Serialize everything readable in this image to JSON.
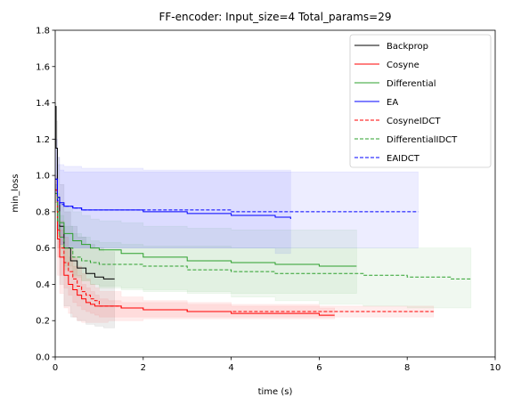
{
  "chart_data": {
    "type": "line",
    "title": "FF-encoder: Input_size=4 Total_params=29",
    "xlabel": "time (s)",
    "ylabel": "min_loss",
    "xlim": [
      0,
      10
    ],
    "ylim": [
      0,
      1.8
    ],
    "xticks": [
      "0",
      "2",
      "4",
      "6",
      "8",
      "10"
    ],
    "yticks": [
      "0.0",
      "0.2",
      "0.4",
      "0.6",
      "0.8",
      "1.0",
      "1.2",
      "1.4",
      "1.6",
      "1.8"
    ],
    "legend_position": "top-right",
    "grid": false,
    "series": [
      {
        "name": "Backprop",
        "color": "#000000",
        "dashed": false,
        "x": [
          0,
          0.02,
          0.05,
          0.1,
          0.2,
          0.35,
          0.5,
          0.7,
          0.9,
          1.1,
          1.35
        ],
        "y": [
          1.38,
          1.15,
          0.88,
          0.72,
          0.6,
          0.53,
          0.49,
          0.46,
          0.44,
          0.43,
          0.43
        ],
        "band_lower": [
          1.3,
          0.9,
          0.6,
          0.4,
          0.28,
          0.22,
          0.2,
          0.18,
          0.17,
          0.16,
          0.16
        ],
        "band_upper": [
          1.4,
          1.3,
          1.1,
          0.95,
          0.8,
          0.72,
          0.66,
          0.62,
          0.6,
          0.58,
          0.58
        ]
      },
      {
        "name": "Cosyne",
        "color": "#ff0000",
        "dashed": false,
        "x": [
          0,
          0.05,
          0.1,
          0.2,
          0.3,
          0.4,
          0.5,
          0.6,
          0.7,
          0.8,
          0.9,
          1.0,
          1.2,
          1.5,
          2,
          3,
          4,
          5,
          6,
          6.35
        ],
        "y": [
          0.92,
          0.65,
          0.55,
          0.45,
          0.4,
          0.37,
          0.34,
          0.32,
          0.3,
          0.29,
          0.28,
          0.28,
          0.28,
          0.27,
          0.26,
          0.25,
          0.24,
          0.24,
          0.23,
          0.23
        ],
        "band_lower": [
          0.8,
          0.45,
          0.35,
          0.27,
          0.24,
          0.22,
          0.2,
          0.19,
          0.19,
          0.19,
          0.19,
          0.19,
          0.2,
          0.2,
          0.21,
          0.21,
          0.21,
          0.21,
          0.21,
          0.21
        ],
        "band_upper": [
          1.0,
          0.85,
          0.7,
          0.6,
          0.55,
          0.5,
          0.45,
          0.4,
          0.38,
          0.36,
          0.34,
          0.32,
          0.31,
          0.3,
          0.3,
          0.29,
          0.28,
          0.28,
          0.27,
          0.27
        ]
      },
      {
        "name": "Differential",
        "color": "#2ca02c",
        "dashed": false,
        "x": [
          0,
          0.05,
          0.1,
          0.2,
          0.4,
          0.6,
          0.8,
          1.0,
          1.5,
          2,
          3,
          4,
          5,
          6,
          6.85
        ],
        "y": [
          0.9,
          0.8,
          0.74,
          0.68,
          0.64,
          0.62,
          0.6,
          0.59,
          0.57,
          0.55,
          0.53,
          0.52,
          0.51,
          0.5,
          0.5
        ],
        "band_lower": [
          0.85,
          0.7,
          0.6,
          0.5,
          0.45,
          0.42,
          0.4,
          0.38,
          0.37,
          0.36,
          0.35,
          0.35,
          0.35,
          0.35,
          0.35
        ],
        "band_upper": [
          0.95,
          0.9,
          0.85,
          0.82,
          0.8,
          0.78,
          0.76,
          0.75,
          0.74,
          0.72,
          0.71,
          0.7,
          0.7,
          0.7,
          0.7
        ]
      },
      {
        "name": "EA",
        "color": "#0000ff",
        "dashed": false,
        "x": [
          0,
          0.05,
          0.1,
          0.2,
          0.4,
          0.6,
          1.0,
          2,
          3,
          4,
          5,
          5.35
        ],
        "y": [
          0.98,
          0.88,
          0.85,
          0.83,
          0.82,
          0.81,
          0.81,
          0.8,
          0.79,
          0.78,
          0.77,
          0.76
        ],
        "band_lower": [
          0.9,
          0.7,
          0.62,
          0.6,
          0.6,
          0.6,
          0.6,
          0.6,
          0.6,
          0.6,
          0.57,
          0.57
        ],
        "band_upper": [
          1.2,
          1.1,
          1.06,
          1.05,
          1.05,
          1.04,
          1.04,
          1.03,
          1.03,
          1.03,
          1.03,
          1.03
        ]
      },
      {
        "name": "CosyneIDCT",
        "color": "#ff0000",
        "dashed": true,
        "x": [
          0,
          0.05,
          0.1,
          0.2,
          0.3,
          0.4,
          0.5,
          0.6,
          0.7,
          0.8,
          0.9,
          1.0,
          1.5,
          2,
          3,
          4,
          6,
          8.6
        ],
        "y": [
          0.92,
          0.7,
          0.6,
          0.52,
          0.47,
          0.43,
          0.39,
          0.36,
          0.34,
          0.32,
          0.31,
          0.28,
          0.27,
          0.26,
          0.25,
          0.25,
          0.25,
          0.25
        ],
        "band_lower": [
          0.85,
          0.55,
          0.45,
          0.38,
          0.34,
          0.3,
          0.28,
          0.26,
          0.25,
          0.24,
          0.23,
          0.22,
          0.22,
          0.22,
          0.22,
          0.22,
          0.22,
          0.22
        ],
        "band_upper": [
          0.98,
          0.85,
          0.75,
          0.66,
          0.6,
          0.55,
          0.5,
          0.46,
          0.43,
          0.4,
          0.38,
          0.36,
          0.33,
          0.31,
          0.3,
          0.29,
          0.28,
          0.28
        ]
      },
      {
        "name": "DifferentialIDCT",
        "color": "#2ca02c",
        "dashed": true,
        "x": [
          0,
          0.05,
          0.1,
          0.2,
          0.4,
          0.6,
          0.8,
          1.0,
          1.5,
          2,
          3,
          4,
          5,
          6,
          7,
          8,
          9,
          9.45
        ],
        "y": [
          0.9,
          0.75,
          0.66,
          0.6,
          0.55,
          0.53,
          0.52,
          0.51,
          0.51,
          0.5,
          0.48,
          0.47,
          0.46,
          0.46,
          0.45,
          0.44,
          0.43,
          0.43
        ],
        "band_lower": [
          0.85,
          0.65,
          0.55,
          0.48,
          0.44,
          0.42,
          0.4,
          0.39,
          0.38,
          0.37,
          0.36,
          0.33,
          0.31,
          0.29,
          0.28,
          0.27,
          0.27,
          0.27
        ],
        "band_upper": [
          0.95,
          0.85,
          0.78,
          0.72,
          0.68,
          0.66,
          0.64,
          0.63,
          0.62,
          0.61,
          0.61,
          0.6,
          0.6,
          0.6,
          0.6,
          0.6,
          0.6,
          0.6
        ]
      },
      {
        "name": "EAIDCT",
        "color": "#0000ff",
        "dashed": true,
        "x": [
          0,
          0.05,
          0.1,
          0.2,
          0.4,
          0.6,
          1.0,
          2,
          4,
          6,
          8.25
        ],
        "y": [
          0.98,
          0.86,
          0.84,
          0.83,
          0.82,
          0.81,
          0.81,
          0.81,
          0.8,
          0.8,
          0.8
        ],
        "band_lower": [
          0.9,
          0.68,
          0.62,
          0.6,
          0.6,
          0.6,
          0.6,
          0.6,
          0.6,
          0.6,
          0.6
        ],
        "band_upper": [
          1.15,
          1.06,
          1.03,
          1.02,
          1.02,
          1.02,
          1.02,
          1.02,
          1.02,
          1.02,
          1.02
        ]
      }
    ]
  }
}
